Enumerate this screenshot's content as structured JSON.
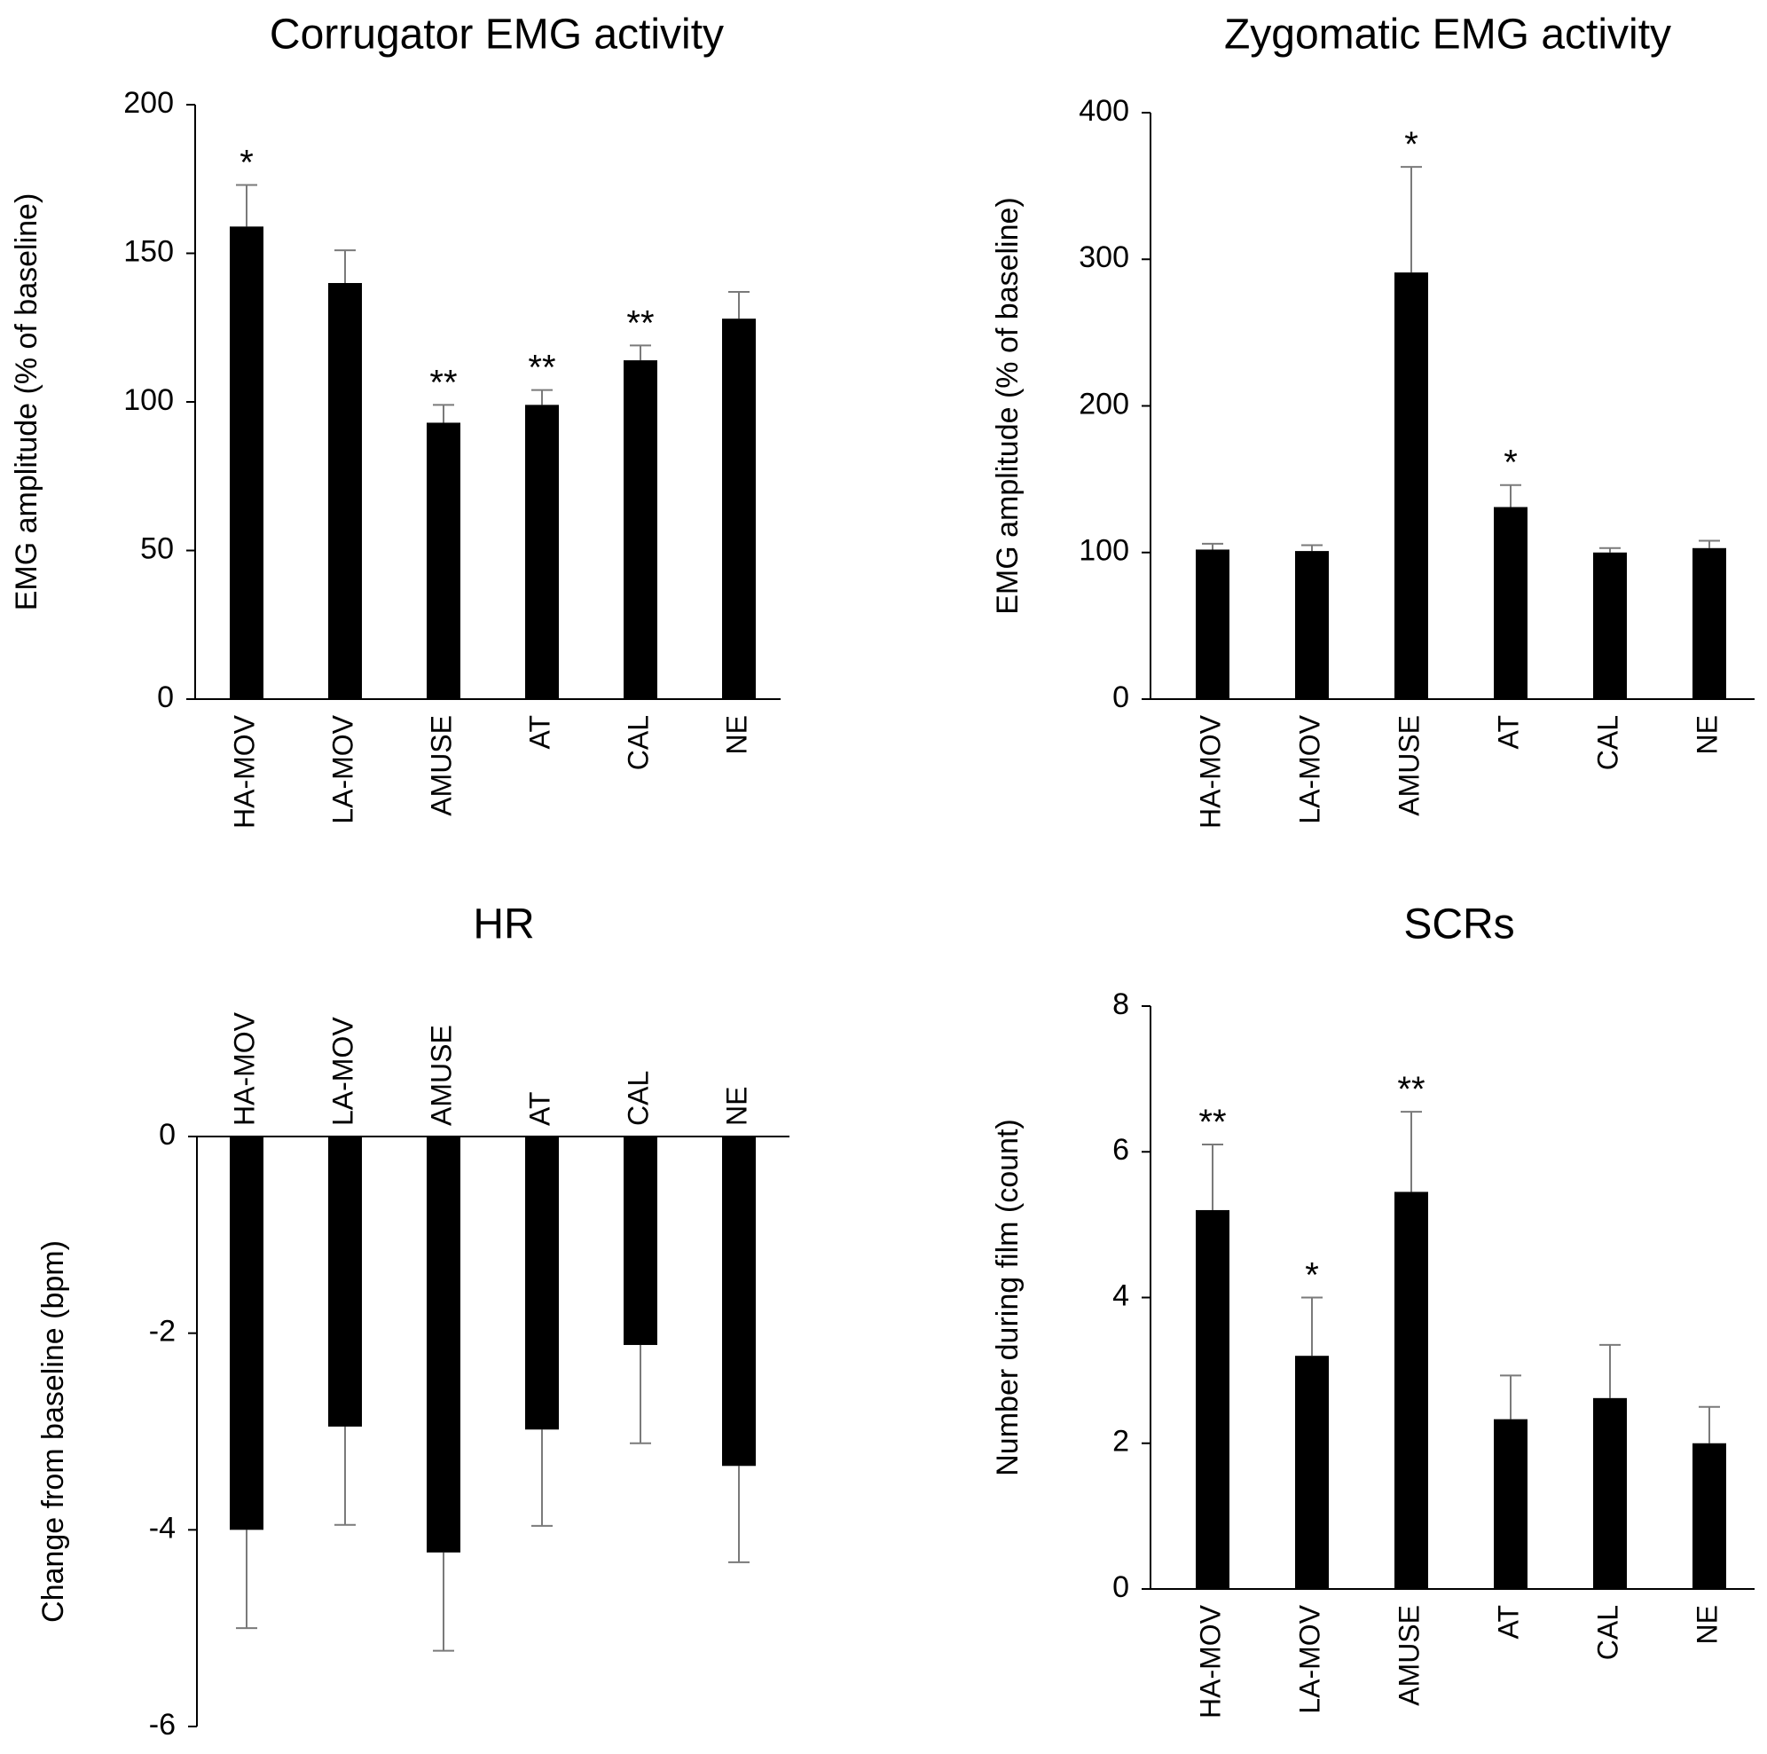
{
  "chart_data": [
    {
      "type": "bar",
      "title": "Corrugator EMG activity",
      "ylabel": "EMG amplitude (% of baseline)",
      "xlabel": "",
      "categories": [
        "HA-MOV",
        "LA-MOV",
        "AMUSE",
        "AT",
        "CAL",
        "NE"
      ],
      "values": [
        159,
        140,
        93,
        99,
        114,
        128
      ],
      "error": [
        14,
        11,
        6,
        5,
        5,
        9
      ],
      "significance": [
        "*",
        "",
        "**",
        "**",
        "**",
        ""
      ],
      "ylim": [
        0,
        200
      ],
      "yticks": [
        0,
        50,
        100,
        150,
        200
      ],
      "grid": false
    },
    {
      "type": "bar",
      "title": "Zygomatic EMG activity",
      "ylabel": "EMG amplitude (% of baseline)",
      "xlabel": "",
      "categories": [
        "HA-MOV",
        "LA-MOV",
        "AMUSE",
        "AT",
        "CAL",
        "NE"
      ],
      "values": [
        102,
        101,
        291,
        131,
        100,
        103
      ],
      "error": [
        4,
        4,
        72,
        15,
        3,
        5
      ],
      "significance": [
        "",
        "",
        "*",
        "*",
        "",
        ""
      ],
      "ylim": [
        0,
        400
      ],
      "yticks": [
        0,
        100,
        200,
        300,
        400
      ],
      "grid": false
    },
    {
      "type": "bar",
      "title": "HR",
      "ylabel": "Change from baseline (bpm)",
      "xlabel": "",
      "categories": [
        "HA-MOV",
        "LA-MOV",
        "AMUSE",
        "AT",
        "CAL",
        "NE"
      ],
      "values": [
        -4.0,
        -2.95,
        -4.23,
        -2.98,
        -2.12,
        -3.35
      ],
      "error": [
        1.0,
        1.0,
        1.0,
        0.98,
        1.0,
        0.98
      ],
      "significance": [
        "",
        "",
        "",
        "",
        "",
        ""
      ],
      "ylim": [
        -6,
        0
      ],
      "yticks": [
        0,
        -2,
        -4,
        -6
      ],
      "grid": false
    },
    {
      "type": "bar",
      "title": "SCRs",
      "ylabel": "Number during film (count)",
      "xlabel": "",
      "categories": [
        "HA-MOV",
        "LA-MOV",
        "AMUSE",
        "AT",
        "CAL",
        "NE"
      ],
      "values": [
        5.2,
        3.2,
        5.45,
        2.33,
        2.62,
        2.0
      ],
      "error": [
        0.9,
        0.8,
        1.1,
        0.6,
        0.73,
        0.5
      ],
      "significance": [
        "**",
        "*",
        "**",
        "",
        "",
        ""
      ],
      "ylim": [
        0,
        8
      ],
      "yticks": [
        0,
        2,
        4,
        6,
        8
      ],
      "grid": false
    }
  ]
}
